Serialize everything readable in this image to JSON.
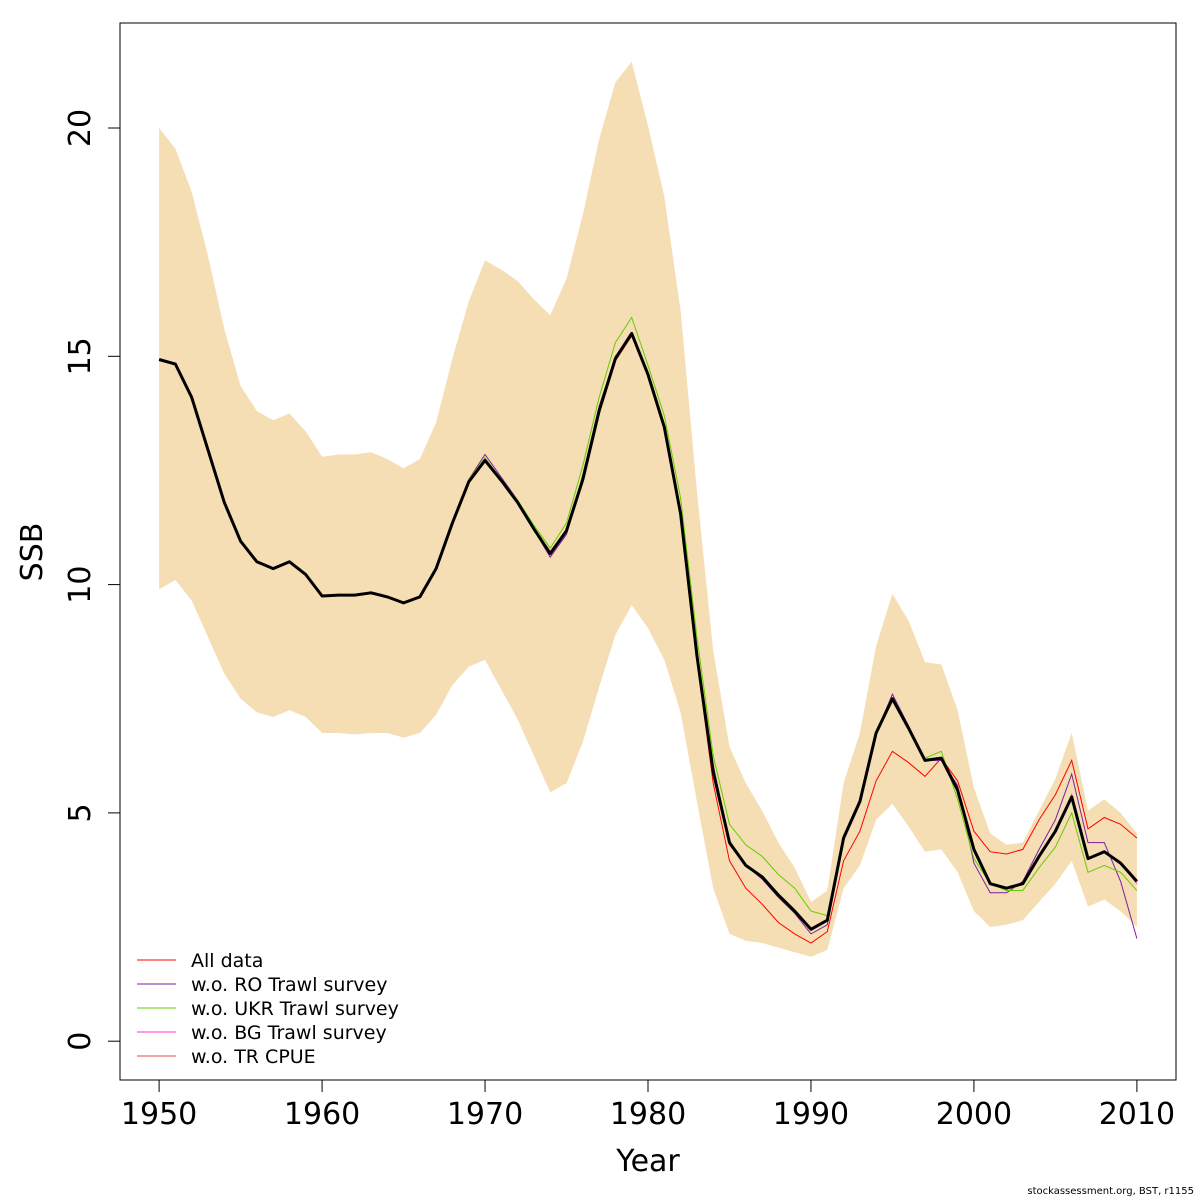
{
  "footer": "stockassessment.org, BST, r1155",
  "chart_data": {
    "type": "line",
    "title": "",
    "xlabel": "Year",
    "ylabel": "SSB",
    "xlim": [
      1947.6,
      2012.4
    ],
    "ylim": [
      -0.85,
      22.3
    ],
    "xticks": [
      1950,
      1960,
      1970,
      1980,
      1990,
      2000,
      2010
    ],
    "yticks": [
      0,
      5,
      10,
      15,
      20
    ],
    "grid": false,
    "legend_position": "bottom-left",
    "band_color": "#F5DEB3",
    "x": [
      1950,
      1951,
      1952,
      1953,
      1954,
      1955,
      1956,
      1957,
      1958,
      1959,
      1960,
      1961,
      1962,
      1963,
      1964,
      1965,
      1966,
      1967,
      1968,
      1969,
      1970,
      1971,
      1972,
      1973,
      1974,
      1975,
      1976,
      1977,
      1978,
      1979,
      1980,
      1981,
      1982,
      1983,
      1984,
      1985,
      1986,
      1987,
      1988,
      1989,
      1990,
      1991,
      1992,
      1993,
      1994,
      1995,
      1996,
      1997,
      1998,
      1999,
      2000,
      2001,
      2002,
      2003,
      2004,
      2005,
      2006,
      2007,
      2008,
      2009,
      2010
    ],
    "band_upper": [
      20.0,
      19.55,
      18.6,
      17.2,
      15.6,
      14.35,
      13.8,
      13.6,
      13.75,
      13.35,
      12.8,
      12.85,
      12.85,
      12.9,
      12.75,
      12.55,
      12.75,
      13.55,
      14.95,
      16.2,
      17.1,
      16.9,
      16.65,
      16.25,
      15.9,
      16.7,
      18.1,
      19.75,
      21.0,
      21.45,
      20.05,
      18.5,
      16.0,
      12.05,
      8.55,
      6.45,
      5.65,
      5.05,
      4.35,
      3.8,
      3.05,
      3.3,
      5.65,
      6.75,
      8.65,
      9.8,
      9.2,
      8.3,
      8.25,
      7.25,
      5.55,
      4.55,
      4.3,
      4.35,
      5.05,
      5.75,
      6.75,
      5.05,
      5.3,
      5.0,
      4.55
    ],
    "band_lower": [
      9.9,
      10.1,
      9.65,
      8.85,
      8.05,
      7.5,
      7.2,
      7.1,
      7.25,
      7.1,
      6.75,
      6.75,
      6.72,
      6.75,
      6.75,
      6.65,
      6.75,
      7.15,
      7.8,
      8.2,
      8.35,
      7.7,
      7.05,
      6.25,
      5.45,
      5.65,
      6.55,
      7.75,
      8.9,
      9.55,
      9.05,
      8.35,
      7.2,
      5.25,
      3.35,
      2.35,
      2.2,
      2.15,
      2.05,
      1.95,
      1.85,
      2.0,
      3.35,
      3.85,
      4.85,
      5.2,
      4.7,
      4.15,
      4.2,
      3.7,
      2.85,
      2.5,
      2.55,
      2.65,
      3.05,
      3.45,
      3.95,
      2.95,
      3.1,
      2.85,
      2.5
    ],
    "series": [
      {
        "name": "All data",
        "color": "#FF0000",
        "values": [
          14.93,
          14.83,
          14.1,
          12.95,
          11.8,
          10.95,
          10.5,
          10.35,
          10.5,
          10.22,
          9.75,
          9.77,
          9.77,
          9.82,
          9.73,
          9.6,
          9.73,
          10.35,
          11.35,
          12.25,
          12.72,
          12.28,
          11.8,
          11.22,
          10.68,
          11.2,
          12.35,
          13.8,
          14.9,
          15.45,
          14.6,
          13.45,
          11.5,
          8.35,
          5.65,
          3.95,
          3.35,
          3.0,
          2.6,
          2.35,
          2.15,
          2.4,
          3.95,
          4.6,
          5.7,
          6.35,
          6.1,
          5.8,
          6.2,
          5.7,
          4.6,
          4.15,
          4.1,
          4.2,
          4.85,
          5.4,
          6.15,
          4.65,
          4.9,
          4.75,
          4.45
        ]
      },
      {
        "name": "w.o. RO Trawl survey",
        "color": "#7B1FA2",
        "values": [
          14.93,
          14.83,
          14.1,
          12.95,
          11.8,
          10.95,
          10.5,
          10.35,
          10.5,
          10.22,
          9.75,
          9.77,
          9.77,
          9.8,
          9.73,
          9.6,
          9.73,
          10.35,
          11.35,
          12.3,
          12.85,
          12.35,
          11.85,
          11.2,
          10.6,
          11.1,
          12.4,
          13.9,
          15.0,
          15.5,
          14.6,
          13.4,
          11.55,
          8.55,
          6.05,
          4.35,
          3.85,
          3.55,
          3.15,
          2.8,
          2.35,
          2.55,
          4.5,
          5.3,
          6.75,
          7.6,
          6.9,
          6.15,
          6.15,
          5.6,
          3.9,
          3.25,
          3.25,
          3.5,
          4.2,
          4.85,
          5.85,
          4.35,
          4.35,
          3.5,
          2.25
        ]
      },
      {
        "name": "w.o. UKR Trawl survey",
        "color": "#66CC00",
        "values": [
          14.93,
          14.83,
          14.1,
          12.95,
          11.8,
          10.95,
          10.5,
          10.35,
          10.5,
          10.22,
          9.75,
          9.77,
          9.77,
          9.82,
          9.73,
          9.6,
          9.73,
          10.35,
          11.4,
          12.3,
          12.78,
          12.3,
          11.85,
          11.3,
          10.8,
          11.35,
          12.6,
          14.1,
          15.3,
          15.85,
          14.8,
          13.7,
          11.9,
          8.85,
          6.25,
          4.75,
          4.3,
          4.05,
          3.65,
          3.35,
          2.85,
          2.75,
          4.4,
          5.2,
          6.7,
          7.45,
          6.8,
          6.2,
          6.35,
          5.3,
          4.0,
          3.45,
          3.3,
          3.3,
          3.8,
          4.25,
          5.0,
          3.7,
          3.85,
          3.7,
          3.3
        ]
      },
      {
        "name": "w.o. BG Trawl survey",
        "color": "#FF33CC",
        "values": [
          14.93,
          14.83,
          14.1,
          12.95,
          11.8,
          10.95,
          10.5,
          10.35,
          10.5,
          10.22,
          9.75,
          9.77,
          9.77,
          9.82,
          9.73,
          9.6,
          9.73,
          10.35,
          11.35,
          12.25,
          12.75,
          12.3,
          11.82,
          11.25,
          10.72,
          11.2,
          12.35,
          13.85,
          14.95,
          15.5,
          14.6,
          13.45,
          11.55,
          8.5,
          5.95,
          4.35,
          3.85,
          3.6,
          3.2,
          2.85,
          2.45,
          2.65,
          4.45,
          5.25,
          6.75,
          7.5,
          6.85,
          6.15,
          6.2,
          5.5,
          4.2,
          3.45,
          3.35,
          3.45,
          4.05,
          4.6,
          5.4,
          4.0,
          4.15,
          3.9,
          3.45
        ]
      },
      {
        "name": "w.o. TR CPUE",
        "color": "#E64D4D",
        "values": [
          14.93,
          14.83,
          14.1,
          12.95,
          11.8,
          10.95,
          10.5,
          10.35,
          10.5,
          10.22,
          9.75,
          9.77,
          9.77,
          9.82,
          9.73,
          9.6,
          9.73,
          10.35,
          11.35,
          12.25,
          12.72,
          12.28,
          11.8,
          11.22,
          10.7,
          11.2,
          12.35,
          13.85,
          14.95,
          15.5,
          14.6,
          13.45,
          11.55,
          8.45,
          5.9,
          4.3,
          3.85,
          3.6,
          3.2,
          2.85,
          2.45,
          2.65,
          4.45,
          5.25,
          6.75,
          7.5,
          6.85,
          6.15,
          6.2,
          5.5,
          4.2,
          3.45,
          3.35,
          3.45,
          4.05,
          4.6,
          5.35,
          4.0,
          4.15,
          3.9,
          3.5
        ]
      }
    ],
    "main_line": {
      "color": "#000000",
      "values": [
        14.93,
        14.83,
        14.1,
        12.95,
        11.8,
        10.95,
        10.5,
        10.35,
        10.5,
        10.22,
        9.75,
        9.77,
        9.77,
        9.82,
        9.73,
        9.6,
        9.73,
        10.35,
        11.35,
        12.25,
        12.72,
        12.28,
        11.8,
        11.22,
        10.68,
        11.18,
        12.3,
        13.8,
        14.95,
        15.5,
        14.6,
        13.45,
        11.55,
        8.45,
        5.9,
        4.35,
        3.85,
        3.6,
        3.2,
        2.85,
        2.45,
        2.65,
        4.45,
        5.25,
        6.75,
        7.5,
        6.85,
        6.15,
        6.2,
        5.5,
        4.2,
        3.45,
        3.35,
        3.45,
        4.05,
        4.6,
        5.35,
        4.0,
        4.15,
        3.9,
        3.5
      ]
    }
  }
}
